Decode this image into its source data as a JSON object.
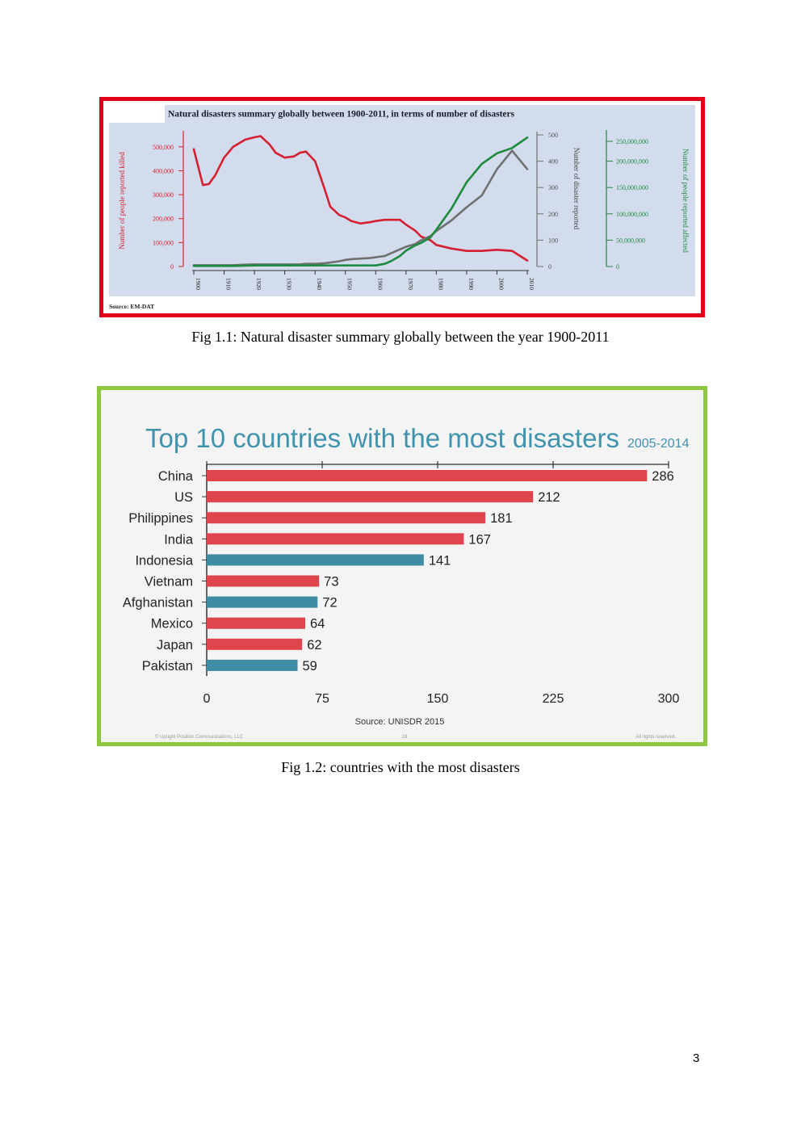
{
  "figures": [
    {
      "caption": "Fig 1.1: Natural disaster summary globally between the year 1900-2011",
      "chart_data": {
        "type": "line",
        "title": "Natural disasters summary globally between 1900-2011, in terms of number of disasters",
        "source": "Source: EM-DAT",
        "x": [
          1900,
          1903,
          1905,
          1907,
          1910,
          1913,
          1917,
          1920,
          1922,
          1925,
          1927,
          1930,
          1933,
          1935,
          1937,
          1940,
          1943,
          1945,
          1948,
          1950,
          1952,
          1955,
          1958,
          1960,
          1963,
          1965,
          1968,
          1970,
          1973,
          1975,
          1978,
          1980,
          1985,
          1990,
          1995,
          2000,
          2005,
          2010
        ],
        "xticks": [
          "1900",
          "1910",
          "1920",
          "1930",
          "1940",
          "1950",
          "1960",
          "1970",
          "1980",
          "1990",
          "2000",
          "2010"
        ],
        "xtick_values": [
          1900,
          1910,
          1920,
          1930,
          1940,
          1950,
          1960,
          1970,
          1980,
          1990,
          2000,
          2010
        ],
        "axes": {
          "killed": {
            "label": "Number of people reported killed",
            "range": [
              0,
              550000
            ],
            "ticks": [
              "0",
              "100,000",
              "200,000",
              "300,000",
              "400,000",
              "500,000"
            ],
            "tick_values": [
              0,
              100000,
              200000,
              300000,
              400000,
              500000
            ],
            "color": "#d42030"
          },
          "disasters": {
            "label": "Number of disaster reported",
            "range": [
              0,
              500
            ],
            "ticks": [
              "0",
              "100",
              "200",
              "300",
              "400",
              "500"
            ],
            "tick_values": [
              0,
              100,
              200,
              300,
              400,
              500
            ],
            "color": "#707070"
          },
          "affected": {
            "label": "Number of people reported affected",
            "range": [
              0,
              250000000
            ],
            "ticks": [
              "0",
              "50,000,000",
              "100,000,000",
              "150,000,000",
              "200,000,000",
              "250,000,000"
            ],
            "tick_values": [
              0,
              50000000,
              100000000,
              150000000,
              200000000,
              250000000
            ],
            "color": "#1e8a3e"
          }
        },
        "series": [
          {
            "axis": "killed",
            "color": "#d42030",
            "values": [
              490000,
              340000,
              345000,
              380000,
              455000,
              500000,
              530000,
              540000,
              545000,
              510000,
              475000,
              455000,
              460000,
              475000,
              480000,
              440000,
              330000,
              250000,
              215000,
              205000,
              190000,
              180000,
              185000,
              190000,
              195000,
              195000,
              195000,
              175000,
              150000,
              125000,
              110000,
              90000,
              75000,
              65000,
              65000,
              70000,
              65000,
              25000
            ]
          },
          {
            "axis": "disasters",
            "color": "#707070",
            "values": [
              5,
              5,
              5,
              5,
              5,
              5,
              7,
              8,
              8,
              8,
              8,
              8,
              8,
              8,
              10,
              10,
              12,
              15,
              20,
              25,
              28,
              30,
              32,
              35,
              40,
              50,
              65,
              75,
              85,
              100,
              115,
              135,
              175,
              225,
              270,
              370,
              440,
              370
            ]
          },
          {
            "axis": "affected",
            "color": "#1e8a3e",
            "values": [
              1000000,
              1000000,
              1000000,
              1000000,
              1000000,
              1000000,
              1500000,
              2000000,
              2000000,
              2000000,
              2000000,
              2000000,
              2000000,
              2000000,
              2000000,
              2000000,
              2000000,
              2000000,
              2000000,
              2000000,
              2000000,
              2000000,
              2000000,
              2000000,
              5000000,
              10000000,
              20000000,
              30000000,
              40000000,
              45000000,
              55000000,
              70000000,
              110000000,
              160000000,
              195000000,
              215000000,
              225000000,
              245000000
            ]
          }
        ]
      }
    },
    {
      "caption": "Fig 1.2: countries with the most disasters",
      "chart_data": {
        "type": "bar",
        "orientation": "horizontal",
        "title": "Top 10 countries with the most disasters",
        "subtitle": "2005-2014",
        "source": "Source: UNISDR 2015",
        "footer": {
          "left": "© Upright Position Communications, LLC",
          "center": "19",
          "right": "All rights reserved."
        },
        "xlim": [
          0,
          300
        ],
        "xticks": [
          "0",
          "75",
          "150",
          "225",
          "300"
        ],
        "xtick_values": [
          0,
          75,
          150,
          225,
          300
        ],
        "categories": [
          "China",
          "US",
          "Philippines",
          "India",
          "Indonesia",
          "Vietnam",
          "Afghanistan",
          "Mexico",
          "Japan",
          "Pakistan"
        ],
        "values": [
          286,
          212,
          181,
          167,
          141,
          73,
          72,
          64,
          62,
          59
        ],
        "colors": [
          "#e0444c",
          "#e0444c",
          "#e0444c",
          "#e0444c",
          "#3e8da3",
          "#e0444c",
          "#3e8da3",
          "#e0444c",
          "#e0444c",
          "#3e8da3"
        ]
      }
    }
  ],
  "page_number": "3"
}
